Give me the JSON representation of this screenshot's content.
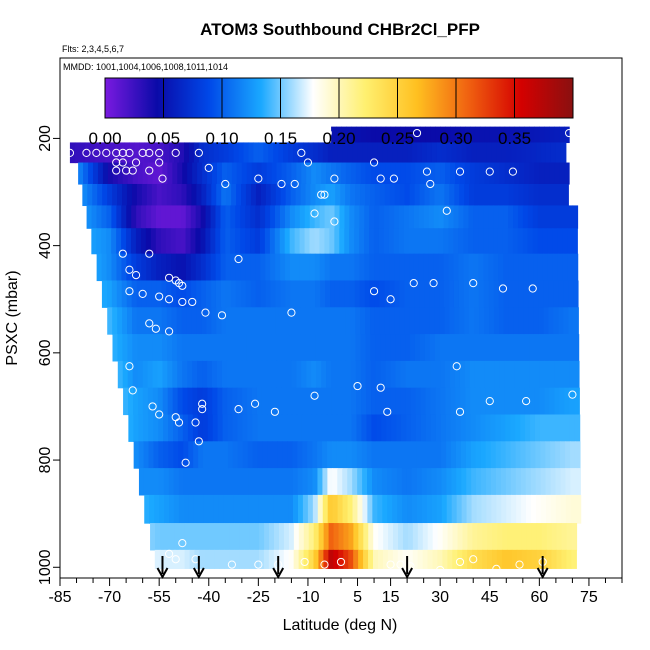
{
  "chart_data": {
    "type": "heatmap",
    "title": "ATOM3 Southbound CHBr2Cl_PFP",
    "flights_label": "Flts: 2,3,4,5,6,7",
    "mmdd_label": "MMDD: 1001,1004,1006,1008,1011,1014",
    "xlabel": "Latitude (deg N)",
    "ylabel": "PSXC (mbar)",
    "xlim": [
      -85,
      85
    ],
    "ylim": [
      1020,
      50
    ],
    "x_ticks": [
      -85,
      -70,
      -55,
      -40,
      -25,
      -10,
      5,
      15,
      30,
      45,
      60,
      75
    ],
    "x_tick_labels": [
      "-85",
      "-70",
      "-55",
      "-40",
      "-25",
      "-10",
      "5",
      "15",
      "30",
      "45",
      "60",
      "75"
    ],
    "y_ticks": [
      200,
      400,
      600,
      800,
      1000
    ],
    "y_tick_labels": [
      "200",
      "400",
      "600",
      "800",
      "1000"
    ],
    "colorbar": {
      "min": 0.0,
      "max": 0.4,
      "ticks": [
        0.0,
        0.05,
        0.1,
        0.15,
        0.2,
        0.25,
        0.3,
        0.35
      ],
      "tick_labels": [
        "0.00",
        "0.05",
        "0.10",
        "0.15",
        "0.20",
        "0.25",
        "0.30",
        "0.35"
      ],
      "colors": [
        "#7a1ae0",
        "#0a0aa8",
        "#0048e8",
        "#1aa8ff",
        "#ffffff",
        "#fff070",
        "#ffc020",
        "#f06010",
        "#d40000",
        "#8a1010"
      ]
    },
    "pressure_levels": [
      190,
      225,
      265,
      305,
      345,
      390,
      440,
      490,
      540,
      590,
      640,
      690,
      740,
      790,
      840,
      890,
      945,
      990
    ],
    "lat_nodes": [
      -82,
      -70,
      -62,
      -55,
      -48,
      -42,
      -35,
      -25,
      -15,
      -8,
      -3,
      3,
      10,
      20,
      30,
      40,
      50,
      60,
      70
    ],
    "field": [
      [
        null,
        null,
        null,
        null,
        null,
        null,
        null,
        null,
        null,
        0.06,
        0.05,
        0.05,
        0.045,
        0.045,
        0.045,
        0.05,
        0.05,
        0.055,
        0.06
      ],
      [
        0.03,
        0.02,
        0.015,
        0.02,
        0.035,
        0.07,
        0.08,
        0.1,
        0.08,
        0.07,
        0.06,
        0.06,
        0.06,
        0.06,
        0.07,
        0.06,
        0.06,
        0.065,
        0.07
      ],
      [
        0.14,
        0.04,
        0.02,
        0.01,
        0.04,
        0.07,
        0.1,
        0.08,
        0.1,
        0.12,
        0.11,
        0.1,
        0.09,
        0.09,
        0.1,
        0.08,
        0.07,
        0.06,
        0.06
      ],
      [
        0.14,
        0.08,
        0.04,
        0.02,
        0.03,
        0.06,
        0.11,
        0.06,
        0.1,
        0.12,
        0.13,
        0.11,
        0.1,
        0.09,
        0.11,
        0.08,
        0.08,
        0.07,
        0.07
      ],
      [
        0.14,
        0.1,
        0.03,
        0.01,
        0.01,
        0.04,
        0.1,
        0.07,
        0.12,
        0.14,
        0.15,
        0.12,
        0.1,
        0.11,
        0.12,
        0.1,
        0.1,
        0.08,
        0.08
      ],
      [
        0.14,
        0.12,
        0.06,
        0.03,
        0.02,
        0.05,
        0.1,
        0.08,
        0.14,
        0.16,
        0.15,
        0.12,
        0.1,
        0.11,
        0.11,
        0.1,
        0.1,
        0.09,
        0.09
      ],
      [
        0.15,
        0.12,
        0.08,
        0.06,
        0.05,
        0.07,
        0.1,
        0.1,
        0.12,
        0.12,
        0.11,
        0.11,
        0.1,
        0.1,
        0.1,
        0.11,
        0.1,
        0.1,
        0.1
      ],
      [
        0.15,
        0.13,
        0.1,
        0.1,
        0.09,
        0.1,
        0.11,
        0.1,
        0.11,
        0.11,
        0.1,
        0.1,
        0.09,
        0.1,
        0.1,
        0.11,
        0.1,
        0.1,
        0.1
      ],
      [
        0.16,
        0.14,
        0.11,
        0.11,
        0.1,
        0.1,
        0.11,
        0.11,
        0.11,
        0.11,
        0.11,
        0.11,
        0.1,
        0.1,
        0.1,
        0.11,
        0.1,
        0.1,
        0.11
      ],
      [
        0.16,
        0.14,
        0.12,
        0.12,
        0.11,
        0.11,
        0.11,
        0.11,
        0.11,
        0.11,
        0.11,
        0.11,
        0.1,
        0.1,
        0.11,
        0.11,
        0.11,
        0.11,
        0.11
      ],
      [
        0.16,
        0.15,
        0.12,
        0.13,
        0.11,
        0.1,
        0.11,
        0.11,
        0.11,
        0.12,
        0.11,
        0.11,
        0.1,
        0.11,
        0.11,
        0.12,
        0.12,
        0.12,
        0.12
      ],
      [
        0.17,
        0.15,
        0.13,
        0.12,
        0.09,
        0.08,
        0.1,
        0.11,
        0.11,
        0.11,
        0.11,
        0.11,
        0.1,
        0.1,
        0.11,
        0.12,
        0.12,
        0.12,
        0.13
      ],
      [
        0.17,
        0.15,
        0.13,
        0.12,
        0.1,
        0.08,
        0.1,
        0.11,
        0.11,
        0.11,
        0.11,
        0.11,
        0.09,
        0.1,
        0.11,
        0.12,
        0.13,
        0.14,
        0.14
      ],
      [
        0.17,
        0.15,
        0.12,
        0.1,
        0.09,
        0.11,
        0.11,
        0.1,
        0.1,
        0.11,
        0.12,
        0.12,
        0.11,
        0.11,
        0.11,
        0.13,
        0.14,
        0.15,
        0.16
      ],
      [
        0.17,
        0.15,
        0.12,
        0.12,
        0.11,
        0.11,
        0.11,
        0.11,
        0.11,
        0.12,
        0.18,
        0.16,
        0.12,
        0.11,
        0.12,
        0.14,
        0.15,
        0.16,
        0.17
      ],
      [
        0.17,
        0.16,
        0.14,
        0.13,
        0.12,
        0.12,
        0.12,
        0.12,
        0.12,
        0.16,
        0.26,
        0.22,
        0.14,
        0.12,
        0.13,
        0.16,
        0.17,
        0.18,
        0.19
      ],
      [
        0.19,
        0.18,
        0.16,
        0.15,
        0.15,
        0.15,
        0.15,
        0.15,
        0.17,
        0.22,
        0.31,
        0.28,
        0.18,
        0.16,
        0.18,
        0.21,
        0.22,
        0.22,
        0.21
      ],
      [
        0.2,
        0.19,
        0.18,
        0.17,
        0.17,
        0.16,
        0.16,
        0.16,
        0.18,
        0.25,
        0.37,
        0.32,
        0.2,
        0.18,
        0.2,
        0.24,
        0.26,
        0.25,
        0.22
      ]
    ],
    "samples": [
      [
        -82,
        227
      ],
      [
        -77,
        227
      ],
      [
        -74,
        227
      ],
      [
        -71,
        227
      ],
      [
        -68,
        227
      ],
      [
        -66,
        227
      ],
      [
        -64,
        227
      ],
      [
        -60,
        227
      ],
      [
        -58,
        227
      ],
      [
        -55,
        227
      ],
      [
        -50,
        227
      ],
      [
        -43,
        227
      ],
      [
        -12,
        227
      ],
      [
        -4,
        190
      ],
      [
        23,
        190
      ],
      [
        69,
        190
      ],
      [
        -68,
        245
      ],
      [
        -66,
        245
      ],
      [
        -62,
        245
      ],
      [
        -55,
        245
      ],
      [
        -10,
        245
      ],
      [
        10,
        245
      ],
      [
        -68,
        260
      ],
      [
        -65,
        260
      ],
      [
        -63,
        260
      ],
      [
        -58,
        260
      ],
      [
        -40,
        255
      ],
      [
        26,
        262
      ],
      [
        36,
        262
      ],
      [
        45,
        262
      ],
      [
        52,
        262
      ],
      [
        -54,
        275
      ],
      [
        -25,
        275
      ],
      [
        -2,
        275
      ],
      [
        12,
        275
      ],
      [
        16,
        275
      ],
      [
        -35,
        285
      ],
      [
        -18,
        285
      ],
      [
        -14,
        285
      ],
      [
        27,
        285
      ],
      [
        -6,
        305
      ],
      [
        -5,
        305
      ],
      [
        32,
        335
      ],
      [
        -8,
        340
      ],
      [
        -2,
        355
      ],
      [
        -66,
        415
      ],
      [
        -58,
        415
      ],
      [
        -31,
        425
      ],
      [
        -64,
        445
      ],
      [
        -62,
        455
      ],
      [
        -52,
        460
      ],
      [
        -50,
        465
      ],
      [
        -49,
        470
      ],
      [
        -48,
        475
      ],
      [
        -64,
        485
      ],
      [
        -60,
        490
      ],
      [
        -55,
        495
      ],
      [
        -52,
        500
      ],
      [
        -48,
        505
      ],
      [
        -45,
        505
      ],
      [
        22,
        470
      ],
      [
        28,
        470
      ],
      [
        40,
        470
      ],
      [
        49,
        480
      ],
      [
        58,
        480
      ],
      [
        -58,
        545
      ],
      [
        -56,
        555
      ],
      [
        -52,
        560
      ],
      [
        -36,
        530
      ],
      [
        -15,
        525
      ],
      [
        -41,
        525
      ],
      [
        10,
        485
      ],
      [
        15,
        500
      ],
      [
        -64,
        625
      ],
      [
        -63,
        670
      ],
      [
        -57,
        700
      ],
      [
        -55,
        715
      ],
      [
        -50,
        720
      ],
      [
        -49,
        730
      ],
      [
        -44,
        730
      ],
      [
        -43,
        765
      ],
      [
        -47,
        805
      ],
      [
        -42,
        695
      ],
      [
        -42,
        705
      ],
      [
        -31,
        705
      ],
      [
        -26,
        695
      ],
      [
        -20,
        710
      ],
      [
        -8,
        680
      ],
      [
        5,
        662
      ],
      [
        12,
        665
      ],
      [
        14,
        710
      ],
      [
        35,
        625
      ],
      [
        36,
        710
      ],
      [
        45,
        690
      ],
      [
        56,
        690
      ],
      [
        70,
        678
      ],
      [
        -48,
        955
      ],
      [
        -52,
        975
      ],
      [
        -50,
        985
      ],
      [
        -44,
        985
      ],
      [
        -33,
        995
      ],
      [
        -25,
        995
      ],
      [
        -19,
        995
      ],
      [
        -11,
        990
      ],
      [
        -5,
        995
      ],
      [
        0,
        990
      ],
      [
        15,
        995
      ],
      [
        18,
        995
      ],
      [
        21,
        998
      ],
      [
        30,
        1005
      ],
      [
        36,
        990
      ],
      [
        40,
        985
      ],
      [
        47,
        1003
      ],
      [
        54,
        995
      ],
      [
        61,
        990
      ]
    ],
    "flight_arrows_lat": [
      -54,
      -43,
      -19,
      20,
      61
    ]
  }
}
